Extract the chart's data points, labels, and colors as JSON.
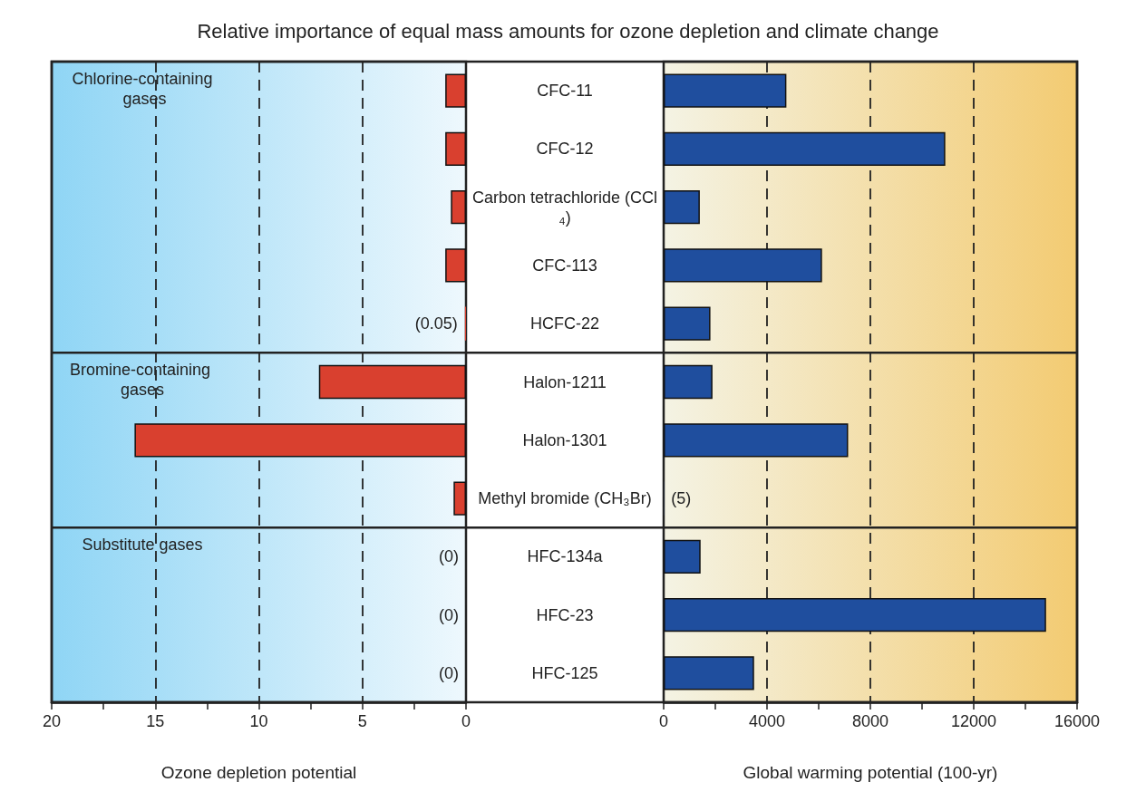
{
  "chart_data": [
    {
      "type": "bar",
      "orientation": "horizontal",
      "title": "Relative importance of equal mass amounts for ozone depletion and climate change",
      "xlabel": "Ozone depletion potential",
      "categories": [
        "CFC-11",
        "CFC-12",
        "Carbon tetrachloride (CCl₄)",
        "CFC-113",
        "HCFC-22",
        "Halon-1211",
        "Halon-1301",
        "Methyl bromide (CH₃Br)",
        "HFC-134a",
        "HFC-23",
        "HFC-125"
      ],
      "values": [
        1,
        1,
        0.73,
        1,
        0.05,
        7.1,
        16,
        0.6,
        0,
        0,
        0
      ],
      "value_labels": [
        null,
        null,
        null,
        null,
        "(0.05)",
        null,
        null,
        null,
        "(0)",
        "(0)",
        "(0)"
      ],
      "color": "#d9402f",
      "xlim": [
        20,
        0
      ],
      "xticks": [
        20,
        15,
        10,
        5,
        0
      ],
      "grid": "x",
      "tick_labels": "x",
      "annotations": [
        "Chlorine-containing gases",
        "Bromine-containing gases",
        "Substitute gases"
      ]
    },
    {
      "type": "bar",
      "orientation": "horizontal",
      "xlabel": "Global warming potential (100-yr)",
      "categories": [
        "CFC-11",
        "CFC-12",
        "Carbon tetrachloride (CCl₄)",
        "CFC-113",
        "HCFC-22",
        "Halon-1211",
        "Halon-1301",
        "Methyl bromide (CH₃Br)",
        "HFC-134a",
        "HFC-23",
        "HFC-125"
      ],
      "values": [
        4750,
        10900,
        1400,
        6130,
        1810,
        1890,
        7140,
        5,
        1430,
        14800,
        3500
      ],
      "value_labels": [
        null,
        null,
        null,
        null,
        null,
        null,
        null,
        "(5)",
        null,
        null,
        null
      ],
      "color": "#1f4e9e",
      "xlim": [
        0,
        16000
      ],
      "xticks": [
        0,
        4000,
        8000,
        12000,
        16000
      ],
      "grid": "x"
    }
  ]
}
